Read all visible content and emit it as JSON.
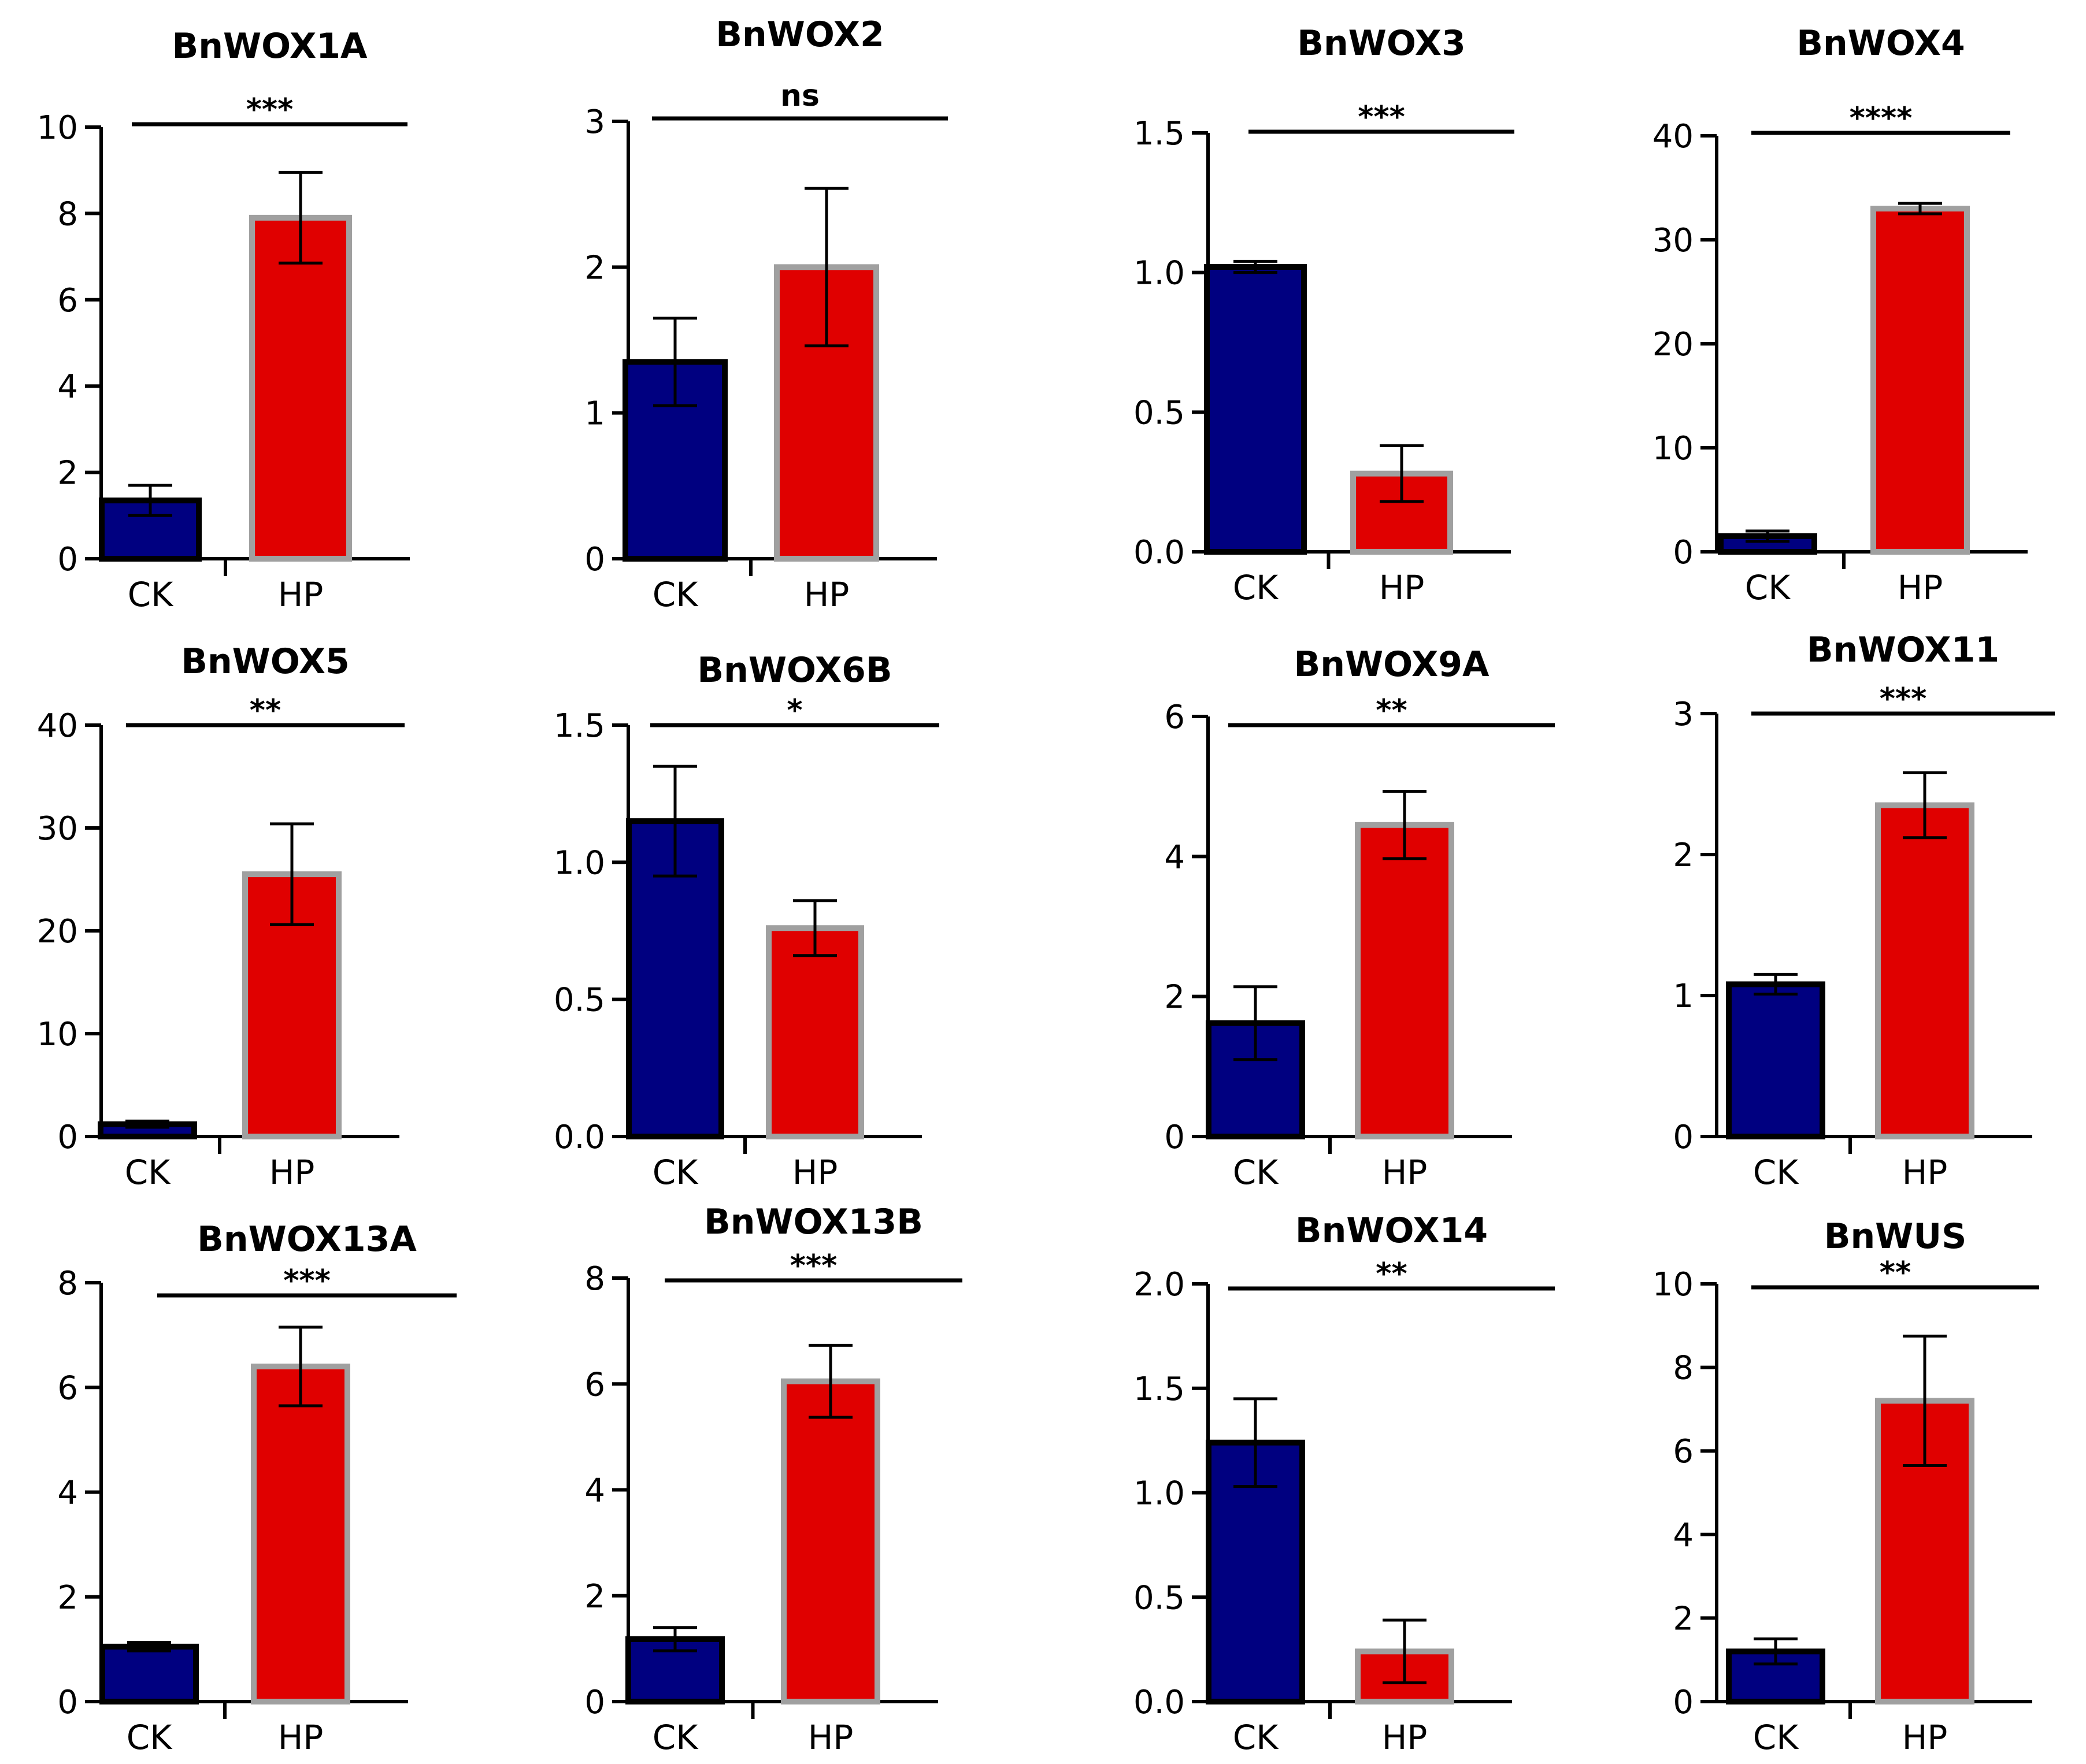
{
  "colors": {
    "ck": "#000080",
    "hp": "#e00000",
    "ck_edge": "#000000",
    "hp_edge": "#a0a0a0",
    "axis": "#000000"
  },
  "chart_data": [
    {
      "type": "bar",
      "title": "BnWOX1A",
      "categories": [
        "CK",
        "HP"
      ],
      "values": [
        1.35,
        7.9
      ],
      "errors": [
        0.35,
        1.05
      ],
      "ylim": [
        0,
        10
      ],
      "yticks": [
        "0",
        "2",
        "4",
        "6",
        "8",
        "10"
      ],
      "significance": "***"
    },
    {
      "type": "bar",
      "title": "BnWOX2",
      "categories": [
        "CK",
        "HP"
      ],
      "values": [
        1.35,
        2.0
      ],
      "errors": [
        0.3,
        0.54
      ],
      "ylim": [
        0,
        3
      ],
      "yticks": [
        "0",
        "1",
        "2",
        "3"
      ],
      "significance": "ns"
    },
    {
      "type": "bar",
      "title": "BnWOX3",
      "categories": [
        "CK",
        "HP"
      ],
      "values": [
        1.02,
        0.28
      ],
      "errors": [
        0.02,
        0.1
      ],
      "ylim": [
        0,
        1.5
      ],
      "yticks": [
        "0.0",
        "0.5",
        "1.0",
        "1.5"
      ],
      "significance": "***"
    },
    {
      "type": "bar",
      "title": "BnWOX4",
      "categories": [
        "CK",
        "HP"
      ],
      "values": [
        1.5,
        33.0
      ],
      "errors": [
        0.5,
        0.5
      ],
      "ylim": [
        0,
        40
      ],
      "yticks": [
        "0",
        "10",
        "20",
        "30",
        "40"
      ],
      "significance": "****"
    },
    {
      "type": "bar",
      "title": "BnWOX5",
      "categories": [
        "CK",
        "HP"
      ],
      "values": [
        1.2,
        25.5
      ],
      "errors": [
        0.3,
        4.9
      ],
      "ylim": [
        0,
        40
      ],
      "yticks": [
        "0",
        "10",
        "20",
        "30",
        "40"
      ],
      "significance": "**"
    },
    {
      "type": "bar",
      "title": "BnWOX6B",
      "categories": [
        "CK",
        "HP"
      ],
      "values": [
        1.15,
        0.76
      ],
      "errors": [
        0.2,
        0.1
      ],
      "ylim": [
        0,
        1.5
      ],
      "yticks": [
        "0.0",
        "0.5",
        "1.0",
        "1.5"
      ],
      "significance": "*"
    },
    {
      "type": "bar",
      "title": "BnWOX9A",
      "categories": [
        "CK",
        "HP"
      ],
      "values": [
        1.62,
        4.45
      ],
      "errors": [
        0.52,
        0.48
      ],
      "ylim": [
        0,
        6
      ],
      "yticks": [
        "0",
        "2",
        "4",
        "6"
      ],
      "significance": "**"
    },
    {
      "type": "bar",
      "title": "BnWOX11",
      "categories": [
        "CK",
        "HP"
      ],
      "values": [
        1.08,
        2.35
      ],
      "errors": [
        0.07,
        0.23
      ],
      "ylim": [
        0,
        3
      ],
      "yticks": [
        "0",
        "1",
        "2",
        "3"
      ],
      "significance": "***"
    },
    {
      "type": "bar",
      "title": "BnWOX13A",
      "categories": [
        "CK",
        "HP"
      ],
      "values": [
        1.05,
        6.4
      ],
      "errors": [
        0.08,
        0.75
      ],
      "ylim": [
        0,
        8
      ],
      "yticks": [
        "0",
        "2",
        "4",
        "6",
        "8"
      ],
      "significance": "***"
    },
    {
      "type": "bar",
      "title": "BnWOX13B",
      "categories": [
        "CK",
        "HP"
      ],
      "values": [
        1.18,
        6.05
      ],
      "errors": [
        0.22,
        0.68
      ],
      "ylim": [
        0,
        8
      ],
      "yticks": [
        "0",
        "2",
        "4",
        "6",
        "8"
      ],
      "significance": "***"
    },
    {
      "type": "bar",
      "title": "BnWOX14",
      "categories": [
        "CK",
        "HP"
      ],
      "values": [
        1.24,
        0.24
      ],
      "errors": [
        0.21,
        0.15
      ],
      "ylim": [
        0,
        2.0
      ],
      "yticks": [
        "0.0",
        "0.5",
        "1.0",
        "1.5",
        "2.0"
      ],
      "significance": "**"
    },
    {
      "type": "bar",
      "title": "BnWUS",
      "categories": [
        "CK",
        "HP"
      ],
      "values": [
        1.2,
        7.2
      ],
      "errors": [
        0.3,
        1.55
      ],
      "ylim": [
        0,
        10
      ],
      "yticks": [
        "0",
        "2",
        "4",
        "6",
        "8",
        "10"
      ],
      "significance": "**"
    }
  ]
}
